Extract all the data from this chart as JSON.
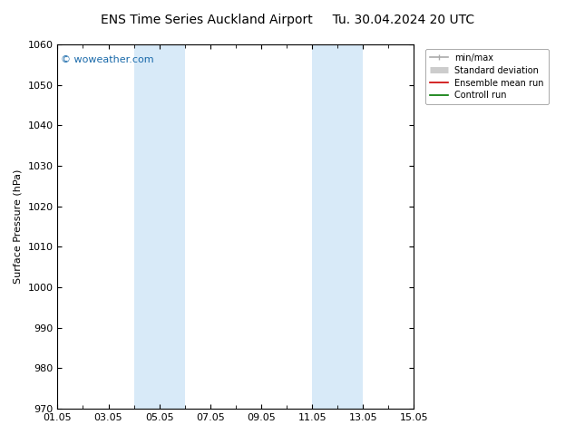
{
  "title": "ENS Time Series Auckland Airport",
  "title2": "Tu. 30.04.2024 20 UTC",
  "ylabel": "Surface Pressure (hPa)",
  "ylim": [
    970,
    1060
  ],
  "yticks": [
    970,
    980,
    990,
    1000,
    1010,
    1020,
    1030,
    1040,
    1050,
    1060
  ],
  "xlim": [
    0,
    14
  ],
  "xtick_positions": [
    0,
    2,
    4,
    6,
    8,
    10,
    12,
    14
  ],
  "xtick_labels": [
    "01.05",
    "03.05",
    "05.05",
    "07.05",
    "09.05",
    "11.05",
    "13.05",
    "15.05"
  ],
  "shaded_bands": [
    {
      "xmin": 3.0,
      "xmax": 5.0
    },
    {
      "xmin": 10.0,
      "xmax": 12.0
    }
  ],
  "shade_color": "#d8eaf8",
  "watermark": "© woweather.com",
  "legend_entries": [
    {
      "label": "min/max",
      "color": "#aaaaaa",
      "lw": 1.2
    },
    {
      "label": "Standard deviation",
      "color": "#cccccc",
      "lw": 5
    },
    {
      "label": "Ensemble mean run",
      "color": "#cc0000",
      "lw": 1.2
    },
    {
      "label": "Controll run",
      "color": "#007700",
      "lw": 1.2
    }
  ],
  "background_color": "#ffffff",
  "title_fontsize": 10,
  "axis_fontsize": 8,
  "tick_fontsize": 8,
  "watermark_color": "#1a6aaa"
}
